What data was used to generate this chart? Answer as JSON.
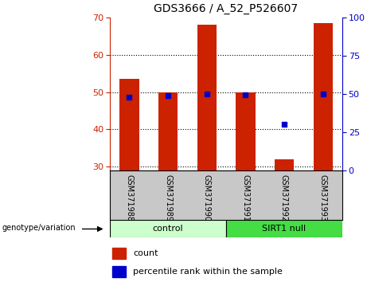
{
  "title": "GDS3666 / A_52_P526607",
  "samples": [
    "GSM371988",
    "GSM371989",
    "GSM371990",
    "GSM371991",
    "GSM371992",
    "GSM371993"
  ],
  "counts": [
    53.5,
    50.0,
    68.0,
    50.0,
    32.0,
    68.5
  ],
  "percentile_ranks": [
    48,
    49,
    50,
    49.5,
    30,
    50
  ],
  "ylim_left": [
    29,
    70
  ],
  "ylim_right": [
    0,
    100
  ],
  "yticks_left": [
    30,
    40,
    50,
    60,
    70
  ],
  "yticks_right": [
    0,
    25,
    50,
    75,
    100
  ],
  "bar_color": "#cc2200",
  "dot_color": "#0000cc",
  "group_control_color": "#ccffcc",
  "group_null_color": "#44dd44",
  "label_bg_color": "#c8c8c8",
  "groups": [
    {
      "label": "control",
      "start": 0,
      "end": 3
    },
    {
      "label": "SIRT1 null",
      "start": 3,
      "end": 6
    }
  ],
  "group_label": "genotype/variation",
  "legend_count_label": "count",
  "legend_pct_label": "percentile rank within the sample",
  "bar_width": 0.5
}
